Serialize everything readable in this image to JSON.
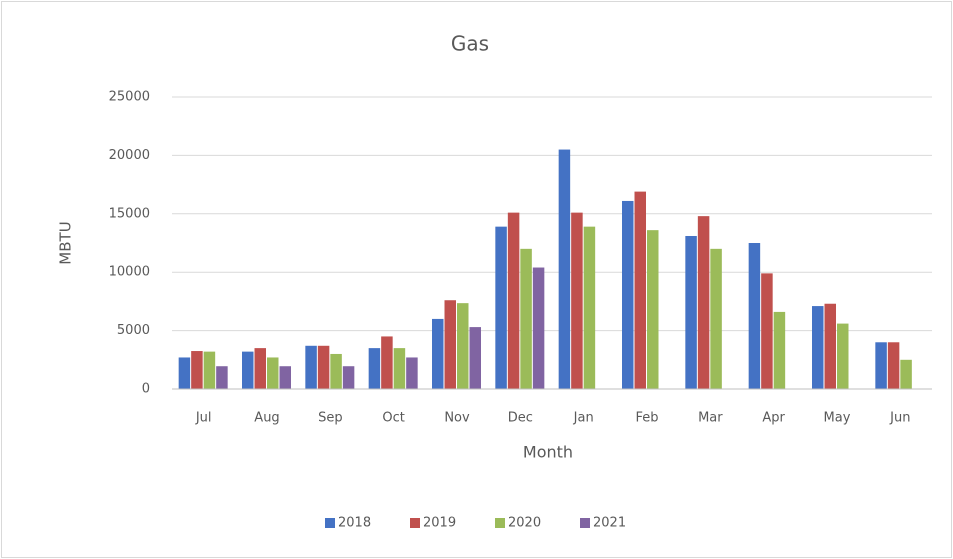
{
  "chart_data": {
    "type": "bar",
    "title": "Gas",
    "x_label": "Month",
    "y_label": "MBTU",
    "categories": [
      "Jul",
      "Aug",
      "Sep",
      "Oct",
      "Nov",
      "Dec",
      "Jan",
      "Feb",
      "Mar",
      "Apr",
      "May",
      "Jun"
    ],
    "series": [
      {
        "name": "2018",
        "color": "#4472c4",
        "values": [
          2700,
          3200,
          3700,
          3500,
          6000,
          13900,
          20500,
          16100,
          13100,
          12500,
          7100,
          4000
        ]
      },
      {
        "name": "2019",
        "color": "#c0504d",
        "values": [
          3250,
          3500,
          3700,
          4500,
          7600,
          15100,
          15100,
          16900,
          14800,
          9900,
          7300,
          4000
        ]
      },
      {
        "name": "2020",
        "color": "#9bbb59",
        "values": [
          3200,
          2700,
          3000,
          3500,
          7350,
          12000,
          13900,
          13600,
          12000,
          6600,
          5600,
          2500
        ]
      },
      {
        "name": "2021",
        "color": "#8064a2",
        "values": [
          1950,
          1950,
          1950,
          2700,
          5300,
          10400,
          null,
          null,
          null,
          null,
          null,
          null
        ]
      }
    ],
    "ylim": [
      0,
      25000
    ],
    "yticks": [
      0,
      5000,
      10000,
      15000,
      20000,
      25000
    ],
    "grid": true,
    "legend": "bottom"
  }
}
